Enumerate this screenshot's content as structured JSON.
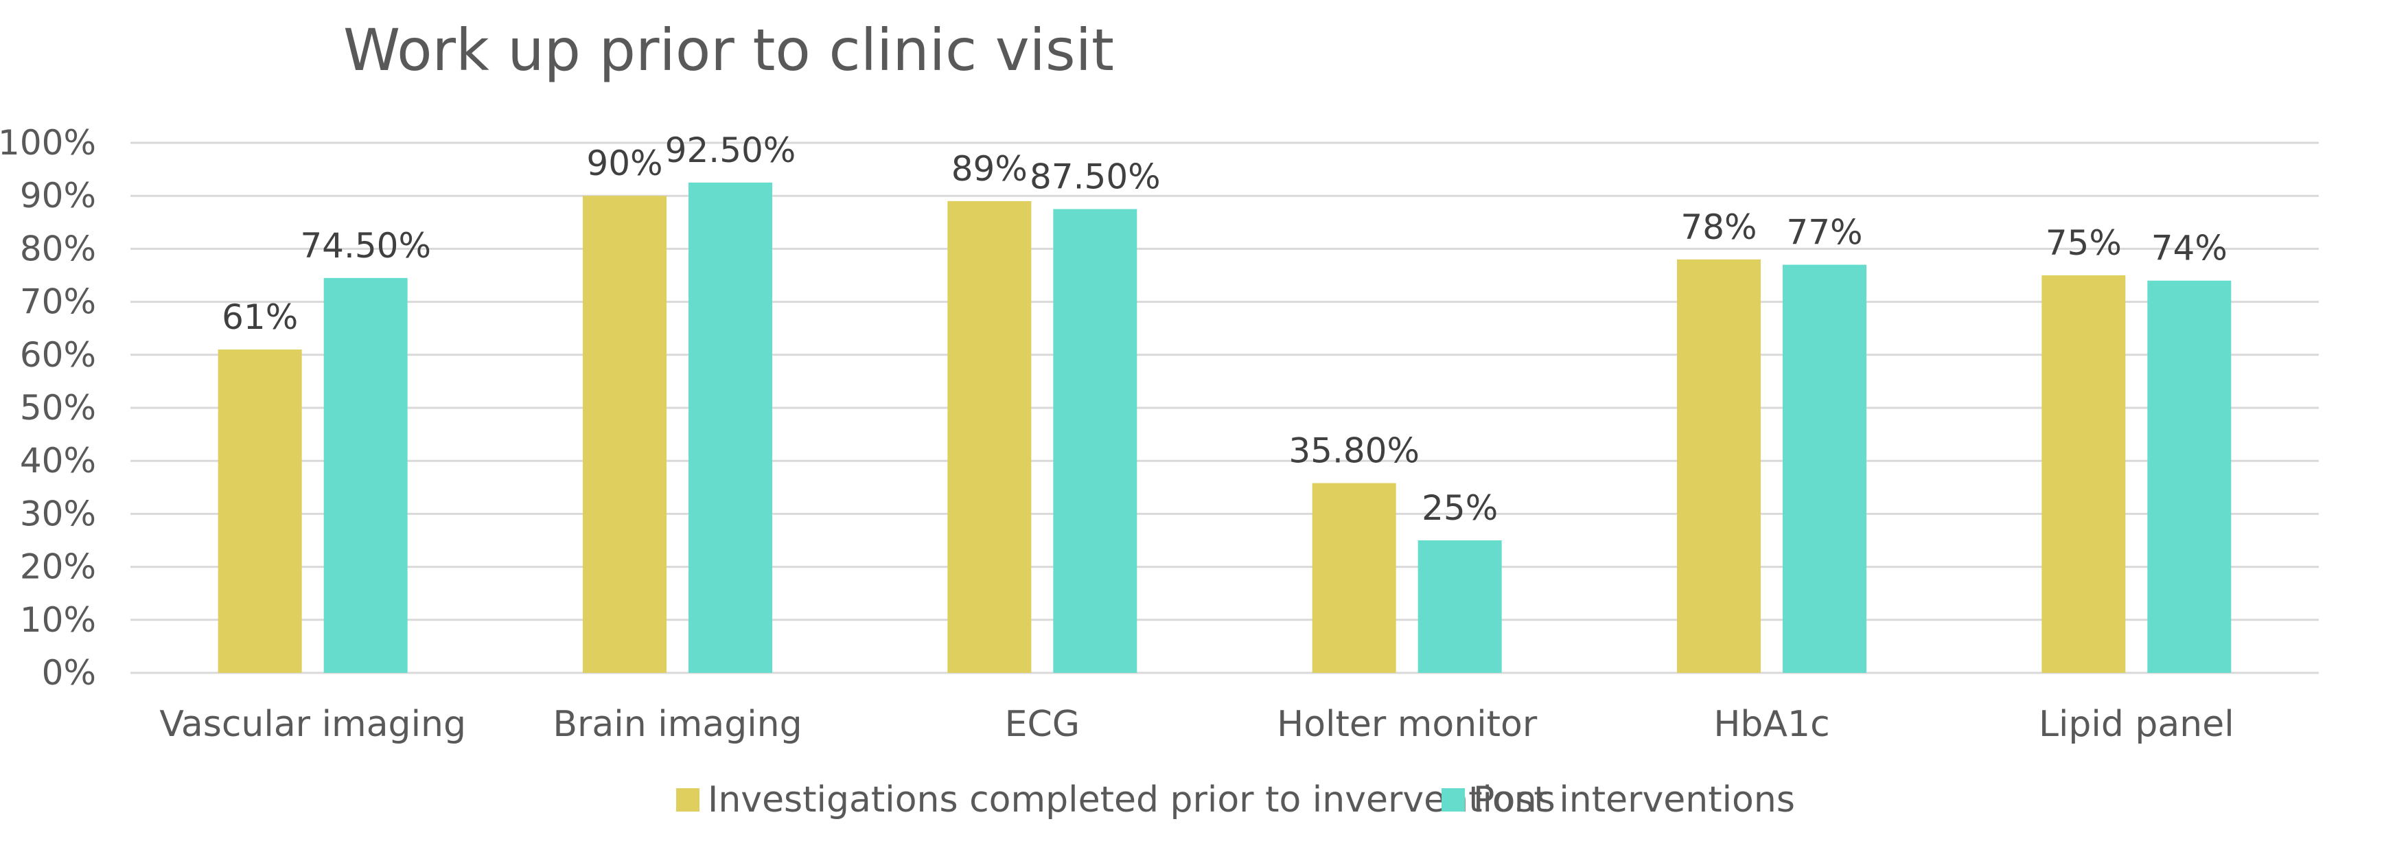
{
  "chart_data": {
    "type": "bar",
    "title": "Work up prior to clinic visit",
    "xlabel": "",
    "ylabel": "",
    "categories": [
      "Vascular imaging",
      "Brain imaging",
      "ECG",
      "Holter monitor",
      "HbA1c",
      "Lipid panel"
    ],
    "series": [
      {
        "name": "Investigations completed prior to inverventions",
        "color": "#dfcf5e",
        "values": [
          61,
          90,
          89,
          35.8,
          78,
          75
        ],
        "labels": [
          "61%",
          "90%",
          "89%",
          "35.80%",
          "78%",
          "75%"
        ]
      },
      {
        "name": "Post interventions",
        "color": "#66dccc",
        "values": [
          74.5,
          92.5,
          87.5,
          25,
          77,
          74
        ],
        "labels": [
          "74.50%",
          "92.50%",
          "87.50%",
          "25%",
          "77%",
          "74%"
        ]
      }
    ],
    "ylim": [
      0,
      100
    ],
    "yticks": [
      "0%",
      "10%",
      "20%",
      "30%",
      "40%",
      "50%",
      "60%",
      "70%",
      "80%",
      "90%",
      "100%"
    ],
    "grid": true,
    "legend_position": "bottom"
  }
}
